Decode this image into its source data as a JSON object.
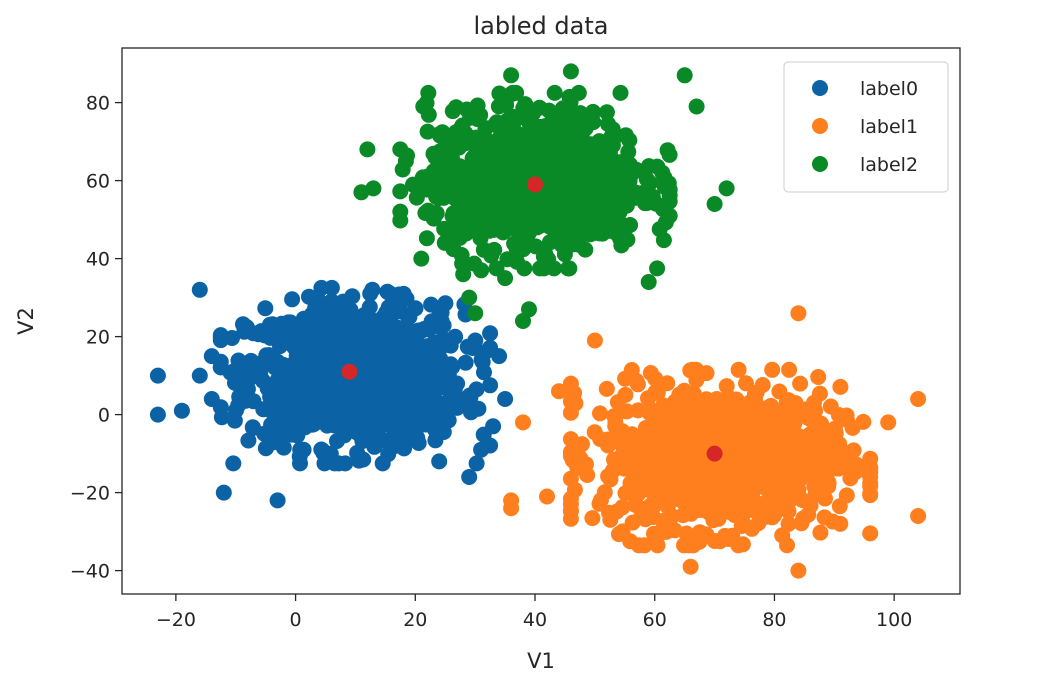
{
  "chart_data": {
    "type": "scatter",
    "title": "labled data",
    "xlabel": "V1",
    "ylabel": "V2",
    "xlim": [
      -29,
      111
    ],
    "ylim": [
      -46,
      94
    ],
    "xticks": [
      -20,
      0,
      20,
      40,
      60,
      80,
      100
    ],
    "xtick_labels": [
      "−20",
      "0",
      "20",
      "40",
      "60",
      "80",
      "100"
    ],
    "yticks": [
      -40,
      -20,
      0,
      20,
      40,
      60,
      80
    ],
    "ytick_labels": [
      "−40",
      "−20",
      "0",
      "20",
      "40",
      "60",
      "80"
    ],
    "grid": false,
    "legend_position": "top-right",
    "series": [
      {
        "name": "label0",
        "color": "#0b63a5",
        "points_per_cluster": 1000,
        "mean": [
          10,
          10
        ],
        "std": [
          9,
          9
        ],
        "outliers": [
          [
            -23,
            10
          ],
          [
            -23,
            0
          ],
          [
            -19,
            1
          ],
          [
            -16,
            32
          ],
          [
            -12,
            -20
          ],
          [
            -3,
            -22
          ],
          [
            29,
            -16
          ],
          [
            34,
            15
          ],
          [
            35,
            4
          ],
          [
            33,
            -3
          ],
          [
            24,
            -12
          ],
          [
            31,
            -9
          ],
          [
            -16,
            10
          ],
          [
            -14,
            4
          ],
          [
            -14,
            15
          ]
        ]
      },
      {
        "name": "label1",
        "color": "#ff7f1f",
        "points_per_cluster": 1000,
        "mean": [
          71,
          -11
        ],
        "std": [
          10,
          9
        ],
        "outliers": [
          [
            104,
            4
          ],
          [
            104,
            -26
          ],
          [
            84,
            26
          ],
          [
            38,
            -2
          ],
          [
            36,
            -22
          ],
          [
            44,
            6
          ],
          [
            50,
            19
          ],
          [
            66,
            -39
          ],
          [
            84,
            -40
          ],
          [
            91,
            -28
          ],
          [
            96,
            -16
          ],
          [
            99,
            -2
          ],
          [
            36,
            -24
          ],
          [
            42,
            -21
          ]
        ]
      },
      {
        "name": "label2",
        "color": "#0a8a26",
        "points_per_cluster": 1000,
        "mean": [
          40,
          60
        ],
        "std": [
          9,
          9
        ],
        "outliers": [
          [
            12,
            68
          ],
          [
            13,
            58
          ],
          [
            11,
            57
          ],
          [
            65,
            87
          ],
          [
            67,
            79
          ],
          [
            72,
            58
          ],
          [
            70,
            54
          ],
          [
            36,
            87
          ],
          [
            46,
            88
          ],
          [
            28,
            36
          ],
          [
            29,
            30
          ],
          [
            30,
            26
          ],
          [
            38,
            24
          ],
          [
            39,
            27
          ],
          [
            31,
            37
          ],
          [
            21,
            40
          ],
          [
            35,
            35
          ],
          [
            59,
            34
          ]
        ]
      }
    ],
    "centroids": {
      "color": "#d62728",
      "points": [
        [
          9,
          11
        ],
        [
          40,
          59
        ],
        [
          70,
          -10
        ]
      ]
    }
  }
}
